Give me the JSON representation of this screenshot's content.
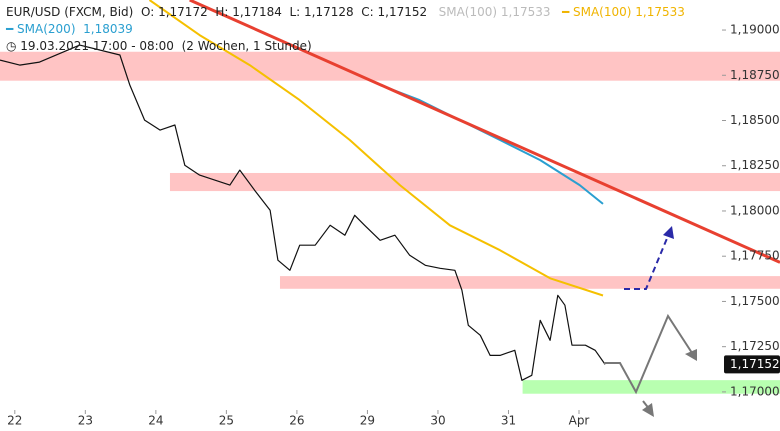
{
  "chart_data": {
    "type": "line",
    "header": {
      "symbol": "EUR/USD (FXCM, Bid)",
      "ohlc": "O: 1,17172  H: 1,17184  L: 1,17128  C: 1,17152",
      "sma100_gray": "SMA(100)",
      "sma100_gray_value": "1,17533",
      "sma100_value": "1,17533",
      "sma200_value": "1,18039",
      "period": "19.03.2021 17:00 - 08:00",
      "span": "(2 Wochen, 1 Stunde)"
    },
    "xlim": [
      -0.21,
      10.85
    ],
    "xticks": [
      {
        "value": 0,
        "label": "22"
      },
      {
        "value": 1,
        "label": "23"
      },
      {
        "value": 2,
        "label": "24"
      },
      {
        "value": 3,
        "label": "25"
      },
      {
        "value": 4,
        "label": "26"
      },
      {
        "value": 5,
        "label": "29"
      },
      {
        "value": 6,
        "label": "30"
      },
      {
        "value": 7,
        "label": "31"
      },
      {
        "value": 8,
        "label": "Apr"
      }
    ],
    "ylim": [
      1.169,
      1.19166
    ],
    "yticks": [
      {
        "value": 1.17,
        "label": "1,17000"
      },
      {
        "value": 1.1725,
        "label": "1,17250"
      },
      {
        "value": 1.175,
        "label": "1,17500"
      },
      {
        "value": 1.1775,
        "label": "1,17750"
      },
      {
        "value": 1.18,
        "label": "1,18000"
      },
      {
        "value": 1.1825,
        "label": "1,18250"
      },
      {
        "value": 1.185,
        "label": "1,18500"
      },
      {
        "value": 1.1875,
        "label": "1,18750"
      },
      {
        "value": 1.19,
        "label": "1,19000"
      }
    ],
    "zones": [
      {
        "x0": -0.21,
        "y0": 1.1872,
        "y1": 1.1888,
        "color": "#ffc4c4"
      },
      {
        "x0": 2.2,
        "y0": 1.1811,
        "y1": 1.1821,
        "color": "#ffc4c4"
      },
      {
        "x0": 3.76,
        "y0": 1.1757,
        "y1": 1.1764,
        "color": "#ffc4c4"
      },
      {
        "x0": 7.2,
        "y0": 1.1699,
        "y1": 1.17065,
        "color": "#b8ffb0"
      }
    ],
    "series": [
      {
        "color": "#111111",
        "width": 1.2,
        "x": [
          -0.21,
          0.07,
          0.35,
          0.92,
          1.49,
          1.63,
          1.84,
          2.06,
          2.27,
          2.41,
          2.62,
          2.84,
          3.05,
          3.19,
          3.4,
          3.62,
          3.73,
          3.9,
          4.04,
          4.26,
          4.47,
          4.68,
          4.82,
          4.96,
          5.18,
          5.39,
          5.6,
          5.82,
          6.03,
          6.24,
          6.34,
          6.43,
          6.6,
          6.74,
          6.88,
          7.09,
          7.19,
          7.33,
          7.45,
          7.59,
          7.7,
          7.8,
          7.9,
          8.09,
          8.23,
          8.37
        ],
        "values": [
          1.18834,
          1.18806,
          1.18823,
          1.18917,
          1.18862,
          1.18696,
          1.18502,
          1.18447,
          1.18475,
          1.18253,
          1.18198,
          1.1817,
          1.18143,
          1.18226,
          1.18115,
          1.18004,
          1.17728,
          1.17672,
          1.17811,
          1.17811,
          1.17921,
          1.17866,
          1.17976,
          1.17921,
          1.17838,
          1.17866,
          1.17755,
          1.177,
          1.17683,
          1.17672,
          1.17562,
          1.17368,
          1.17313,
          1.17202,
          1.17202,
          1.1723,
          1.17064,
          1.17092,
          1.17396,
          1.17285,
          1.17534,
          1.17479,
          1.17258,
          1.17258,
          1.1723,
          1.17152
        ]
      },
      {
        "name": "SMA(200)",
        "color": "#2a9fd0",
        "width": 2,
        "x": [
          5.18,
          5.74,
          6.31,
          6.88,
          7.45,
          8.01,
          8.34
        ],
        "values": [
          1.18696,
          1.18613,
          1.18502,
          1.18392,
          1.18281,
          1.18143,
          1.18039
        ]
      },
      {
        "name": "SMA(100)",
        "color": "#f5c000",
        "width": 2,
        "x": [
          1.91,
          2.62,
          3.33,
          4.04,
          4.75,
          5.46,
          6.17,
          6.88,
          7.59,
          8.34
        ],
        "values": [
          1.19166,
          1.18972,
          1.18806,
          1.18613,
          1.18392,
          1.18143,
          1.17921,
          1.17783,
          1.17628,
          1.17533
        ]
      },
      {
        "color": "#e84030",
        "width": 3,
        "x": [
          2.48,
          10.85
        ],
        "values": [
          1.19166,
          1.17716
        ]
      }
    ],
    "last_price": {
      "value": 1.17152,
      "label": "1,17152"
    }
  }
}
